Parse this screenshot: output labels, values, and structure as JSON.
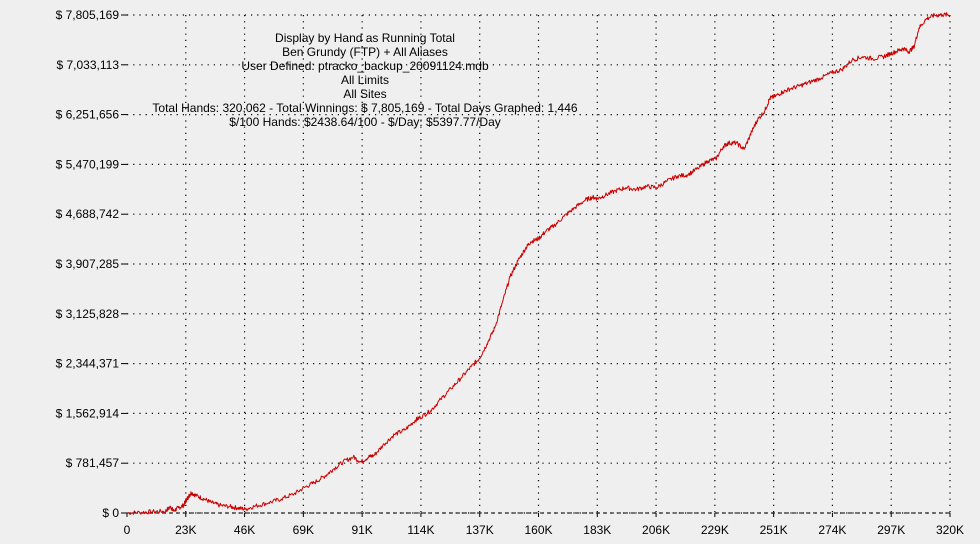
{
  "chart_data": {
    "type": "line",
    "title_lines": [
      "Display by Hand as Running Total",
      "Ben Grundy (FTP) + All Aliases",
      "User Defined: ptracko_backup_20091124.mdb",
      "All Limits",
      "All Sites",
      "Total Hands: 320,062 - Total Winnings: $ 7,805,169 - Total Days Graphed: 1,446",
      "$/100 Hands: $2438.64/100 - $/Day: $5397.77/Day"
    ],
    "xlabel": "",
    "ylabel": "",
    "x_ticks": [
      "0",
      "23K",
      "46K",
      "69K",
      "91K",
      "114K",
      "137K",
      "160K",
      "183K",
      "206K",
      "229K",
      "251K",
      "274K",
      "297K",
      "320K"
    ],
    "y_ticks": [
      "$ 0",
      "$ 781,457",
      "$ 1,562,914",
      "$ 2,344,371",
      "$ 3,125,828",
      "$ 3,907,285",
      "$ 4,688,742",
      "$ 5,470,199",
      "$ 6,251,656",
      "$ 7,033,113",
      "$ 7,805,169"
    ],
    "xlim": [
      0,
      320062
    ],
    "ylim": [
      0,
      7805169
    ],
    "grid": true,
    "line_color": "#cc0000",
    "series": [
      {
        "name": "",
        "x": [
          0,
          5000,
          10000,
          15000,
          17000,
          18000,
          20000,
          22000,
          23000,
          24000,
          25000,
          27000,
          30000,
          33000,
          36000,
          40000,
          43000,
          46000,
          50000,
          55000,
          60000,
          65000,
          69000,
          73000,
          77000,
          80000,
          84000,
          88000,
          91000,
          94000,
          96000,
          100000,
          104000,
          108000,
          112000,
          114000,
          118000,
          122000,
          126000,
          130000,
          134000,
          137000,
          140000,
          143000,
          146000,
          149000,
          152000,
          155000,
          157000,
          160000,
          163000,
          166000,
          170000,
          174000,
          178000,
          181000,
          183000,
          186000,
          190000,
          194000,
          198000,
          202000,
          206000,
          210000,
          214000,
          218000,
          222000,
          226000,
          229000,
          232000,
          234000,
          237000,
          240000,
          243000,
          245000,
          248000,
          250000,
          252000,
          255000,
          258000,
          262000,
          266000,
          270000,
          274000,
          278000,
          282000,
          286000,
          290000,
          294000,
          297000,
          300000,
          302000,
          304000,
          306000,
          308000,
          311000,
          314000,
          317000,
          320062
        ],
        "y": [
          0,
          10000,
          20000,
          30000,
          100000,
          30000,
          80000,
          120000,
          200000,
          260000,
          320000,
          270000,
          220000,
          160000,
          120000,
          100000,
          80000,
          60000,
          110000,
          160000,
          220000,
          300000,
          400000,
          480000,
          580000,
          680000,
          800000,
          880000,
          800000,
          880000,
          900000,
          1080000,
          1230000,
          1300000,
          1450000,
          1500000,
          1600000,
          1780000,
          1950000,
          2120000,
          2300000,
          2420000,
          2650000,
          2900000,
          3300000,
          3700000,
          3950000,
          4150000,
          4250000,
          4300000,
          4420000,
          4500000,
          4650000,
          4780000,
          4900000,
          4950000,
          4930000,
          4980000,
          5050000,
          5100000,
          5070000,
          5120000,
          5100000,
          5200000,
          5280000,
          5300000,
          5400000,
          5520000,
          5550000,
          5750000,
          5800000,
          5800000,
          5700000,
          5980000,
          6150000,
          6300000,
          6500000,
          6530000,
          6600000,
          6650000,
          6700000,
          6760000,
          6820000,
          6900000,
          6950000,
          7100000,
          7150000,
          7120000,
          7150000,
          7200000,
          7250000,
          7280000,
          7230000,
          7300000,
          7600000,
          7750000,
          7800000,
          7810000,
          7805169
        ]
      }
    ]
  }
}
